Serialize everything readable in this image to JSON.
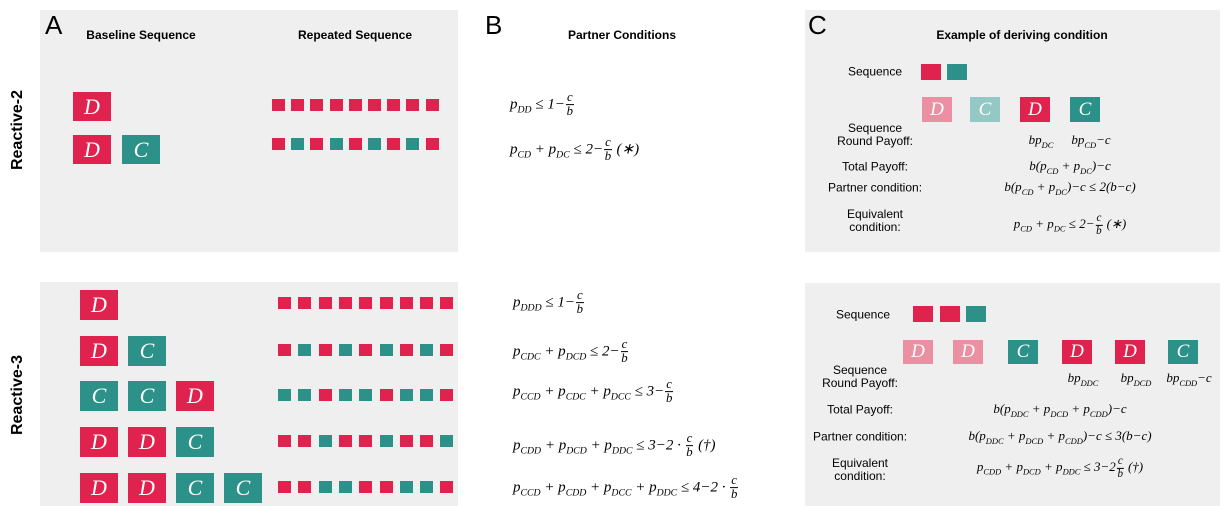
{
  "panels": [
    {
      "label": "A",
      "headers": [
        "Baseline Sequence",
        "Repeated Sequence"
      ]
    },
    {
      "label": "B",
      "headers": [
        "Partner Conditions"
      ]
    },
    {
      "label": "C",
      "headers": [
        "Example of deriving condition"
      ]
    }
  ],
  "rows": [
    {
      "name": "Reactive-2",
      "baseline": [
        [
          "D"
        ],
        [
          "D",
          "C"
        ]
      ],
      "repeated": [
        "DDDDDDDDD",
        "DCDCDCDCD"
      ],
      "conditions": [
        [
          [
            "t",
            "p"
          ],
          [
            "sub",
            "DD"
          ],
          [
            "t",
            " ≤ 1−"
          ],
          [
            "frac",
            "c",
            "b"
          ]
        ],
        [
          [
            "t",
            "p"
          ],
          [
            "sub",
            "CD"
          ],
          [
            "t",
            " + p"
          ],
          [
            "sub",
            "DC"
          ],
          [
            "t",
            " ≤ 2−"
          ],
          [
            "frac",
            "c",
            "b"
          ],
          [
            "t",
            " (∗)"
          ]
        ]
      ],
      "example": {
        "sequence_label": "Sequence",
        "sequence": "DC",
        "cards": [
          {
            "letter": "D",
            "faded": true
          },
          {
            "letter": "C",
            "faded": true
          },
          {
            "letter": "D",
            "faded": false
          },
          {
            "letter": "C",
            "faded": false
          }
        ],
        "payoffs": [
          [
            [
              "t",
              "bp"
            ],
            [
              "sub",
              "DC"
            ]
          ],
          [
            [
              "t",
              "bp"
            ],
            [
              "sub",
              "CD"
            ],
            [
              "t",
              "−c"
            ]
          ]
        ],
        "labels": [
          "Sequence\nRound Payoff:",
          "Total Payoff:",
          "Partner condition:",
          "Equivalent\ncondition:"
        ],
        "formulas": [
          [
            [
              "t",
              "b(p"
            ],
            [
              "sub",
              "CD"
            ],
            [
              "t",
              " + p"
            ],
            [
              "sub",
              "DC"
            ],
            [
              "t",
              ")−c"
            ]
          ],
          [
            [
              "t",
              "b(p"
            ],
            [
              "sub",
              "CD"
            ],
            [
              "t",
              " + p"
            ],
            [
              "sub",
              "DC"
            ],
            [
              "t",
              ")−c ≤ 2(b−c)"
            ]
          ],
          [
            [
              "t",
              "p"
            ],
            [
              "sub",
              "CD"
            ],
            [
              "t",
              " + p"
            ],
            [
              "sub",
              "DC"
            ],
            [
              "t",
              " ≤ 2−"
            ],
            [
              "frac",
              "c",
              "b"
            ],
            [
              "t",
              " (∗)"
            ]
          ]
        ]
      }
    },
    {
      "name": "Reactive-3",
      "baseline": [
        [
          "D"
        ],
        [
          "D",
          "C"
        ],
        [
          "C",
          "C",
          "D"
        ],
        [
          "D",
          "D",
          "C"
        ],
        [
          "D",
          "D",
          "C",
          "C"
        ]
      ],
      "repeated": [
        "DDDDDDDDD",
        "DCDCDCDCD",
        "CCDCCDCCD",
        "DDCDDCDDC",
        "DDCCDDCCD"
      ],
      "conditions": [
        [
          [
            "t",
            "p"
          ],
          [
            "sub",
            "DDD"
          ],
          [
            "t",
            " ≤ 1−"
          ],
          [
            "frac",
            "c",
            "b"
          ]
        ],
        [
          [
            "t",
            "p"
          ],
          [
            "sub",
            "CDC"
          ],
          [
            "t",
            " + p"
          ],
          [
            "sub",
            "DCD"
          ],
          [
            "t",
            " ≤ 2−"
          ],
          [
            "frac",
            "c",
            "b"
          ]
        ],
        [
          [
            "t",
            "p"
          ],
          [
            "sub",
            "CCD"
          ],
          [
            "t",
            " + p"
          ],
          [
            "sub",
            "CDC"
          ],
          [
            "t",
            " + p"
          ],
          [
            "sub",
            "DCC"
          ],
          [
            "t",
            " ≤ 3−"
          ],
          [
            "frac",
            "c",
            "b"
          ]
        ],
        [
          [
            "t",
            "p"
          ],
          [
            "sub",
            "CDD"
          ],
          [
            "t",
            " + p"
          ],
          [
            "sub",
            "DCD"
          ],
          [
            "t",
            " + p"
          ],
          [
            "sub",
            "DDC"
          ],
          [
            "t",
            " ≤ 3−2 · "
          ],
          [
            "frac",
            "c",
            "b"
          ],
          [
            "t",
            " (†)"
          ]
        ],
        [
          [
            "t",
            "p"
          ],
          [
            "sub",
            "CCD"
          ],
          [
            "t",
            " + p"
          ],
          [
            "sub",
            "CDD"
          ],
          [
            "t",
            " + p"
          ],
          [
            "sub",
            "DCC"
          ],
          [
            "t",
            " + p"
          ],
          [
            "sub",
            "DDC"
          ],
          [
            "t",
            " ≤ 4−2 · "
          ],
          [
            "frac",
            "c",
            "b"
          ]
        ]
      ],
      "example": {
        "sequence_label": "Sequence",
        "sequence": "DDC",
        "cards": [
          {
            "letter": "D",
            "faded": true
          },
          {
            "letter": "D",
            "faded": true
          },
          {
            "letter": "C",
            "faded": false
          },
          {
            "letter": "D",
            "faded": false
          },
          {
            "letter": "D",
            "faded": false
          },
          {
            "letter": "C",
            "faded": false
          }
        ],
        "payoffs": [
          [
            [
              "t",
              "bp"
            ],
            [
              "sub",
              "DDC"
            ]
          ],
          [
            [
              "t",
              "bp"
            ],
            [
              "sub",
              "DCD"
            ]
          ],
          [
            [
              "t",
              "bp"
            ],
            [
              "sub",
              "CDD"
            ],
            [
              "t",
              "−c"
            ]
          ]
        ],
        "labels": [
          "Sequence\nRound Payoff:",
          "Total Payoff:",
          "Partner condition:",
          "Equivalent\ncondition:"
        ],
        "formulas": [
          [
            [
              "t",
              "b(p"
            ],
            [
              "sub",
              "DDC"
            ],
            [
              "t",
              " + p"
            ],
            [
              "sub",
              "DCD"
            ],
            [
              "t",
              " + p"
            ],
            [
              "sub",
              "CDD"
            ],
            [
              "t",
              ")−c"
            ]
          ],
          [
            [
              "t",
              "b(p"
            ],
            [
              "sub",
              "DDC"
            ],
            [
              "t",
              " + p"
            ],
            [
              "sub",
              "DCD"
            ],
            [
              "t",
              " + p"
            ],
            [
              "sub",
              "CDD"
            ],
            [
              "t",
              ")−c ≤ 3(b−c)"
            ]
          ],
          [
            [
              "t",
              "p"
            ],
            [
              "sub",
              "CDD"
            ],
            [
              "t",
              " + p"
            ],
            [
              "sub",
              "DCD"
            ],
            [
              "t",
              " + p"
            ],
            [
              "sub",
              "DDC"
            ],
            [
              "t",
              " ≤ 3−2"
            ],
            [
              "frac",
              "c",
              "b"
            ],
            [
              "t",
              " (†)"
            ]
          ]
        ]
      }
    }
  ]
}
